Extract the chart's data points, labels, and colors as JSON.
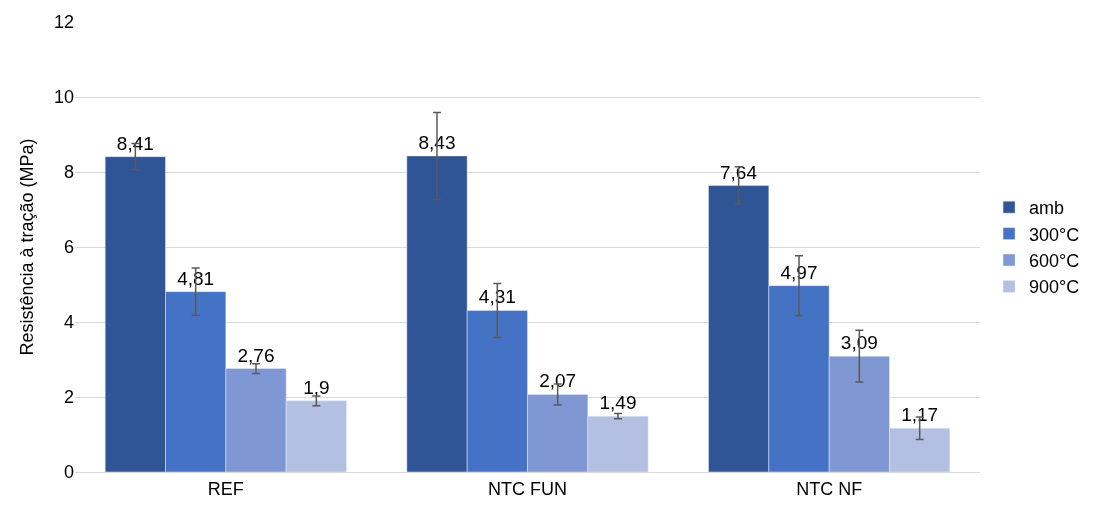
{
  "chart_data": {
    "type": "bar",
    "ylabel": "Resistência à tração (MPa)",
    "categories": [
      "REF",
      "NTC FUN",
      "NTC NF"
    ],
    "series": [
      {
        "name": "amb",
        "color": "#2f5597",
        "values": [
          8.41,
          8.43,
          7.64
        ],
        "errors": [
          0.35,
          1.16,
          0.5
        ],
        "value_labels": [
          "8,41",
          "8,43",
          "7,64"
        ]
      },
      {
        "name": "300°C",
        "color": "#4472c4",
        "values": [
          4.81,
          4.31,
          4.97
        ],
        "errors": [
          0.63,
          0.72,
          0.8
        ],
        "value_labels": [
          "4,81",
          "4,31",
          "4,97"
        ]
      },
      {
        "name": "600°C",
        "color": "#7f97d2",
        "values": [
          2.76,
          2.07,
          3.09
        ],
        "errors": [
          0.13,
          0.28,
          0.69
        ],
        "value_labels": [
          "2,76",
          "2,07",
          "3,09"
        ]
      },
      {
        "name": "900°C",
        "color": "#b4c0e2",
        "values": [
          1.9,
          1.49,
          1.17
        ],
        "errors": [
          0.13,
          0.07,
          0.3
        ],
        "value_labels": [
          "1,9",
          "1,49",
          "1,17"
        ]
      }
    ],
    "ylim": [
      0,
      12
    ],
    "yticks": [
      0,
      2,
      4,
      6,
      8,
      10,
      12
    ],
    "grid": "y",
    "legend": "right"
  }
}
